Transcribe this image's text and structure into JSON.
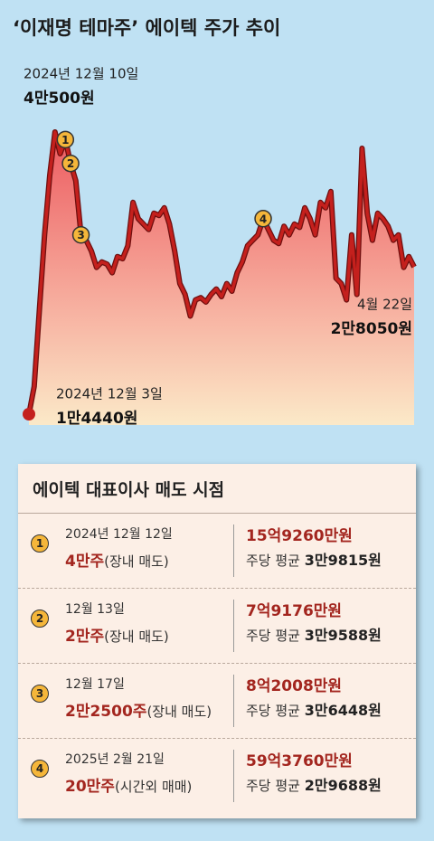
{
  "chart_data": {
    "type": "line",
    "title": "‘이재명 테마주’ 에이텍 주가 추이",
    "color": "#c4201d",
    "values": [
      14440,
      17000,
      24000,
      31000,
      36500,
      40500,
      38500,
      39800,
      37600,
      36000,
      31000,
      30500,
      29500,
      28000,
      28500,
      28300,
      27500,
      29000,
      28800,
      30000,
      34000,
      32500,
      32000,
      31500,
      33000,
      32800,
      33500,
      32000,
      29500,
      26500,
      25500,
      23500,
      25000,
      25200,
      24800,
      25500,
      26000,
      25300,
      26500,
      25800,
      27500,
      28500,
      30000,
      30500,
      31000,
      32500,
      31500,
      30500,
      30200,
      31800,
      31000,
      32000,
      31700,
      33500,
      32500,
      31000,
      34000,
      33500,
      35000,
      27000,
      26500,
      25000,
      31000,
      25500,
      39000,
      33000,
      30500,
      33000,
      32500,
      31800,
      30500,
      31000,
      28000,
      29000,
      28050
    ],
    "categories": [
      "2024년 12월 3일",
      null,
      null,
      null,
      null,
      "2024년 12월 10일",
      null,
      null,
      null,
      null,
      null,
      null,
      null,
      null,
      null,
      null,
      null,
      null,
      null,
      null,
      null,
      null,
      null,
      null,
      null,
      null,
      null,
      null,
      null,
      null,
      null,
      null,
      null,
      null,
      null,
      null,
      null,
      null,
      null,
      null,
      null,
      null,
      null,
      null,
      null,
      null,
      null,
      null,
      null,
      null,
      null,
      null,
      null,
      null,
      null,
      null,
      null,
      null,
      null,
      null,
      null,
      null,
      null,
      null,
      null,
      null,
      null,
      null,
      null,
      null,
      null,
      null,
      null,
      null,
      "4월 22일"
    ],
    "value_labels": [
      "1만4440원",
      null,
      null,
      null,
      null,
      "4만500원",
      null,
      null,
      null,
      null,
      null,
      null,
      null,
      null,
      null,
      null,
      null,
      null,
      null,
      null,
      null,
      null,
      null,
      null,
      null,
      null,
      null,
      null,
      null,
      null,
      null,
      null,
      null,
      null,
      null,
      null,
      null,
      null,
      null,
      null,
      null,
      null,
      null,
      null,
      null,
      null,
      null,
      null,
      null,
      null,
      null,
      null,
      null,
      null,
      null,
      null,
      null,
      null,
      null,
      null,
      null,
      null,
      null,
      null,
      null,
      null,
      null,
      null,
      null,
      null,
      null,
      null,
      null,
      null,
      "2만8050원"
    ],
    "markers": [
      null,
      null,
      null,
      null,
      null,
      null,
      null,
      "1",
      "2",
      null,
      "3",
      null,
      null,
      null,
      null,
      null,
      null,
      null,
      null,
      null,
      null,
      null,
      null,
      null,
      null,
      null,
      null,
      null,
      null,
      null,
      null,
      null,
      null,
      null,
      null,
      null,
      null,
      null,
      null,
      null,
      null,
      null,
      null,
      null,
      null,
      "4",
      null,
      null,
      null,
      null,
      null,
      null,
      null,
      null,
      null,
      null,
      null,
      null,
      null,
      null,
      null,
      null,
      null,
      null,
      null,
      null,
      null,
      null,
      null,
      null,
      null,
      null,
      null,
      null,
      null
    ]
  },
  "table": {
    "title": "에이텍 대표이사 매도 시점",
    "rows": [
      {
        "marker": "1",
        "date": "2024년 12월 12일",
        "shares": "4만주",
        "method": "(장내 매도)",
        "amount": "15억9260만원",
        "avg_label": "주당 평균",
        "avg": "3만9815원"
      },
      {
        "marker": "2",
        "date": "12월 13일",
        "shares": "2만주",
        "method": "(장내 매도)",
        "amount": "7억9176만원",
        "avg_label": "주당 평균",
        "avg": "3만9588원"
      },
      {
        "marker": "3",
        "date": "12월 17일",
        "shares": "2만2500주",
        "method": "(장내 매도)",
        "amount": "8억2008만원",
        "avg_label": "주당 평균",
        "avg": "3만6448원"
      },
      {
        "marker": "4",
        "date": "2025년 2월 21일",
        "shares": "20만주",
        "method": "(시간외 매매)",
        "amount": "59억3760만원",
        "avg_label": "주당 평균",
        "avg": "2만9688원"
      }
    ]
  }
}
